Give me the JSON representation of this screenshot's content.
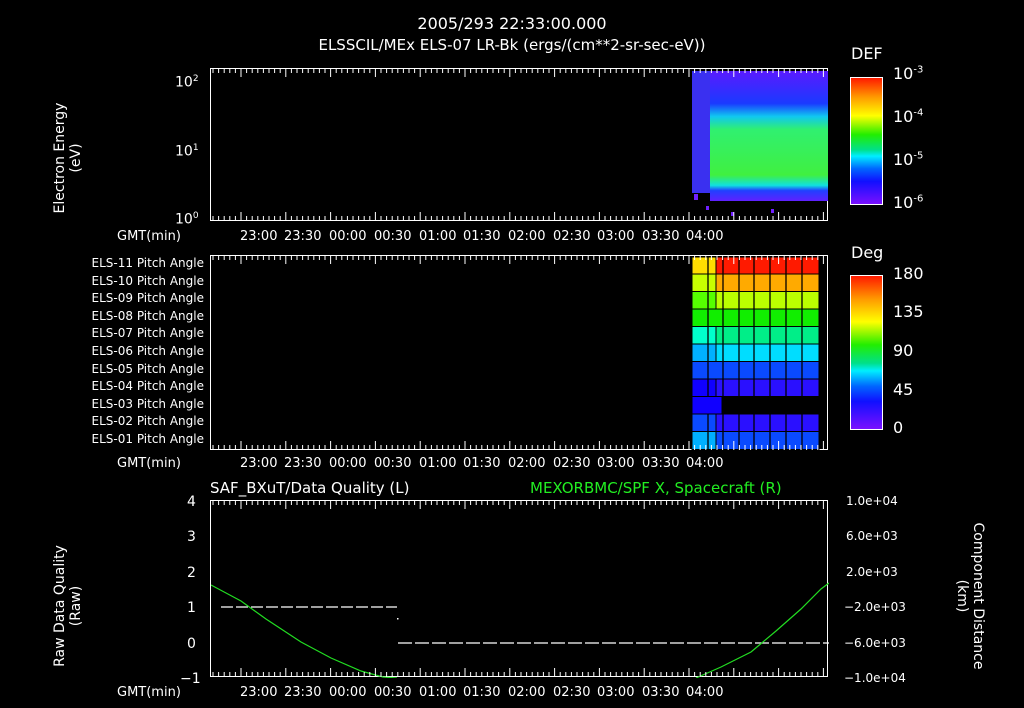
{
  "header": {
    "timestamp": "2005/293 22:33:00.000",
    "subtitle": "ELSSCIL/MEx ELS-07 LR-Bk  (ergs/(cm**2-sr-sec-eV))"
  },
  "panel1": {
    "ylabel_line1": "Electron Energy",
    "ylabel_line2": "(eV)",
    "yticks": [
      "10",
      "10",
      "10"
    ],
    "yexp": [
      "2",
      "1",
      "0"
    ],
    "xlabel": "GMT(min)",
    "colorbar_title": "DEF",
    "colorbar_ticks": [
      "10",
      "10",
      "10",
      "10"
    ],
    "colorbar_exp": [
      "-3",
      "-4",
      "-5",
      "-6"
    ]
  },
  "panel2": {
    "row_labels": [
      "ELS-11 Pitch Angle",
      "ELS-10 Pitch Angle",
      "ELS-09 Pitch Angle",
      "ELS-08 Pitch Angle",
      "ELS-07 Pitch Angle",
      "ELS-06 Pitch Angle",
      "ELS-05 Pitch Angle",
      "ELS-04 Pitch Angle",
      "ELS-03 Pitch Angle",
      "ELS-02 Pitch Angle",
      "ELS-01 Pitch Angle"
    ],
    "xlabel": "GMT(min)",
    "colorbar_title": "Deg",
    "colorbar_ticks": [
      "180",
      "135",
      "90",
      "45",
      "0"
    ]
  },
  "panel3": {
    "left_title": "SAF_BXuT/Data Quality (L)",
    "right_title": "MEXORBMC/SPF X, Spacecraft (R)",
    "ylabel_line1": "Raw Data Quality",
    "ylabel_line2": "(Raw)",
    "yticks_left": [
      "4",
      "3",
      "2",
      "1",
      "0",
      "−1"
    ],
    "yticks_right": [
      "1.0e+04",
      "6.0e+03",
      "2.0e+03",
      "−2.0e+03",
      "−6.0e+03",
      "−1.0e+04"
    ],
    "ylabel_right_line1": "Component Distance",
    "ylabel_right_line2": "(km)",
    "xlabel": "GMT(min)"
  },
  "xticks": [
    "23:00",
    "23:30",
    "00:00",
    "00:30",
    "01:00",
    "01:30",
    "02:00",
    "02:30",
    "03:00",
    "03:30",
    "04:00"
  ],
  "colors": {
    "green_trace": "#22dd22",
    "right_title": "#22ee22"
  },
  "chart_data": [
    {
      "type": "heatmap",
      "title": "ELSSCIL/MEx ELS-07 LR-Bk (ergs/(cm**2-sr-sec-eV))",
      "xlabel": "GMT(min)",
      "ylabel": "Electron Energy (eV)",
      "yscale": "log",
      "ylim": [
        1,
        150
      ],
      "xticks": [
        "23:00",
        "23:30",
        "00:00",
        "00:30",
        "01:00",
        "01:30",
        "02:00",
        "02:30",
        "03:00",
        "03:30",
        "04:00"
      ],
      "colorbar": {
        "label": "DEF",
        "scale": "log",
        "range": [
          1e-06,
          0.001
        ]
      },
      "notes": "Data present only from ~03:05 to ~04:15; green (~1e-4.5) band between ~3 and ~40 eV after ~03:12, blue/purple (1e-6..1e-5) elsewhere"
    },
    {
      "type": "heatmap",
      "title": "ELS Pitch Angles",
      "xlabel": "GMT(min)",
      "rows": [
        "ELS-11",
        "ELS-10",
        "ELS-09",
        "ELS-08",
        "ELS-07",
        "ELS-06",
        "ELS-05",
        "ELS-04",
        "ELS-03",
        "ELS-02",
        "ELS-01"
      ],
      "colorbar": {
        "label": "Deg",
        "range": [
          0,
          180
        ],
        "ticks": [
          0,
          45,
          90,
          135,
          180
        ]
      },
      "approx_values_deg": [
        170,
        150,
        130,
        110,
        95,
        80,
        55,
        30,
        25,
        35,
        55
      ],
      "notes": "Data only ~03:05 to ~04:15; ELS-03 row only first ~3 columns"
    },
    {
      "type": "line",
      "title_left": "SAF_BXuT/Data Quality (L)",
      "title_right": "MEXORBMC/SPF X, Spacecraft (R)",
      "xlabel": "GMT(min)",
      "ylabel_left": "Raw Data Quality (Raw)",
      "ylim_left": [
        -1,
        4
      ],
      "ylabel_right": "Component Distance (km)",
      "ylim_right": [
        -10000,
        10000
      ],
      "series": [
        {
          "name": "Data Quality",
          "axis": "left",
          "points": [
            [
              "22:50",
              1
            ],
            [
              "00:10",
              1
            ],
            [
              "00:13",
              0.7
            ],
            [
              "00:13",
              0
            ],
            [
              "04:15",
              0
            ]
          ]
        },
        {
          "name": "SPF X",
          "axis": "right",
          "points": [
            [
              "22:33",
              3200
            ],
            [
              "23:00",
              -200
            ],
            [
              "23:30",
              -4200
            ],
            [
              "00:00",
              -8300
            ],
            [
              "00:13",
              -10000
            ],
            [
              "03:03",
              -10000
            ],
            [
              "03:30",
              -6600
            ],
            [
              "04:00",
              -900
            ],
            [
              "04:15",
              3300
            ]
          ]
        }
      ]
    }
  ]
}
